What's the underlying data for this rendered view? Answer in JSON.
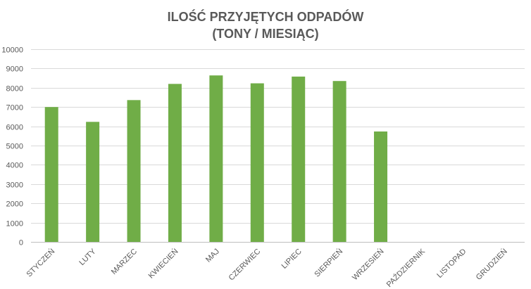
{
  "chart_data": {
    "type": "bar",
    "title_line1": "ILOŚĆ PRZYJĘTYCH ODPADÓW",
    "title_line2": "(TONY / MIESIĄC)",
    "categories": [
      "STYCZEŃ",
      "LUTY",
      "MARZEC",
      "KWIECIEŃ",
      "MAJ",
      "CZERWIEC",
      "LIPIEC",
      "SIERPIEŃ",
      "WRZESIEŃ",
      "PAŹDZIERNIK",
      "LISTOPAD",
      "GRUDZIEŃ"
    ],
    "values": [
      7000,
      6230,
      7360,
      8200,
      8640,
      8230,
      8580,
      8350,
      5730,
      null,
      null,
      null
    ],
    "ylim": [
      0,
      10000
    ],
    "yticks": [
      0,
      1000,
      2000,
      3000,
      4000,
      5000,
      6000,
      7000,
      8000,
      9000,
      10000
    ],
    "grid": true,
    "bar_color": "#70ad47"
  }
}
